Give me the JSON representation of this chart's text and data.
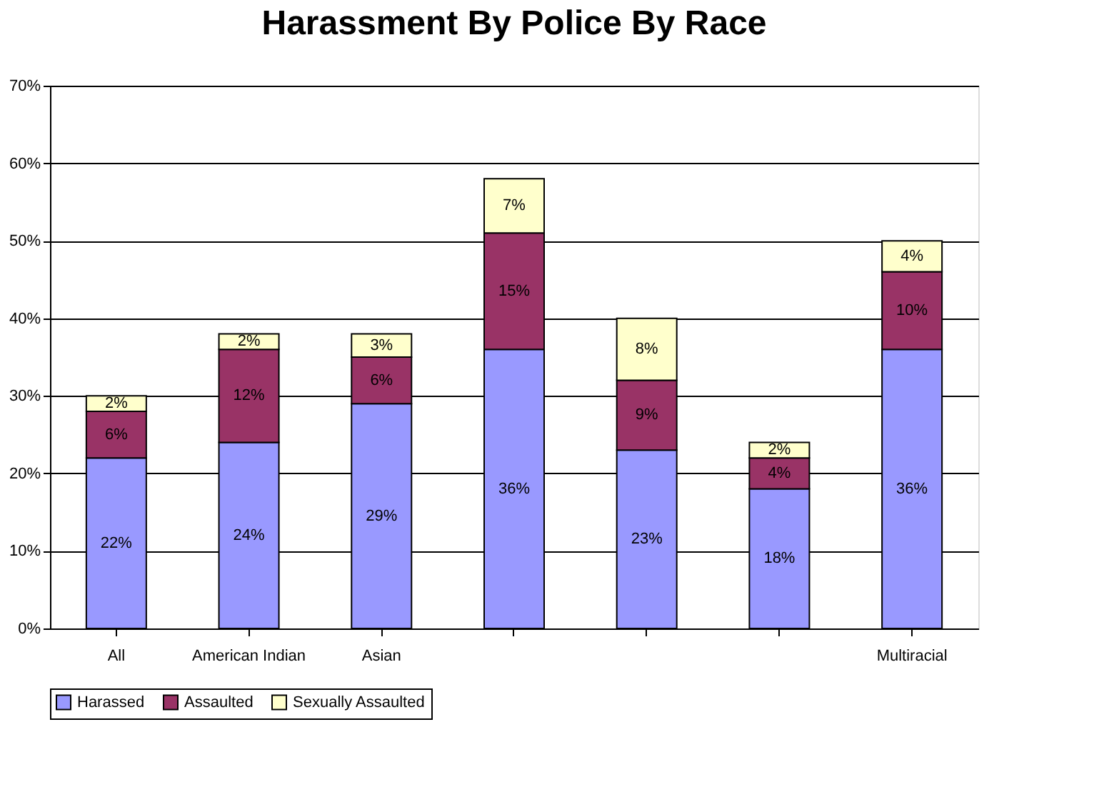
{
  "chart_data": {
    "type": "bar",
    "title": "Harassment By Police By Race",
    "stacked": true,
    "categories": [
      "All",
      "American Indian",
      "Asian",
      null,
      null,
      null,
      "Multiracial"
    ],
    "series": [
      {
        "name": "Harassed",
        "color": "#9999ff",
        "values": [
          22,
          24,
          29,
          36,
          23,
          18,
          36
        ],
        "value_labels": [
          "22%",
          "24%",
          "29%",
          "36%",
          "23%",
          "18%",
          "36%"
        ]
      },
      {
        "name": "Assaulted",
        "color": "#993366",
        "values": [
          6,
          12,
          6,
          15,
          9,
          4,
          10
        ],
        "value_labels": [
          "6%",
          "12%",
          "6%",
          "15%",
          "9%",
          "4%",
          "10%"
        ]
      },
      {
        "name": "Sexually Assaulted",
        "color": "#ffffcc",
        "values": [
          2,
          2,
          3,
          7,
          8,
          2,
          4
        ],
        "value_labels": [
          "2%",
          "2%",
          "3%",
          "7%",
          "8%",
          "2%",
          "4%"
        ]
      }
    ],
    "ylim": [
      0,
      70
    ],
    "yticks": [
      {
        "value": 0,
        "label": "0%"
      },
      {
        "value": 10,
        "label": "10%"
      },
      {
        "value": 20,
        "label": "20%"
      },
      {
        "value": 30,
        "label": "30%"
      },
      {
        "value": 40,
        "label": "40%"
      },
      {
        "value": 50,
        "label": "50%"
      },
      {
        "value": 60,
        "label": "60%"
      },
      {
        "value": 70,
        "label": "70%"
      }
    ],
    "grid": "y",
    "legend": "bottom"
  }
}
